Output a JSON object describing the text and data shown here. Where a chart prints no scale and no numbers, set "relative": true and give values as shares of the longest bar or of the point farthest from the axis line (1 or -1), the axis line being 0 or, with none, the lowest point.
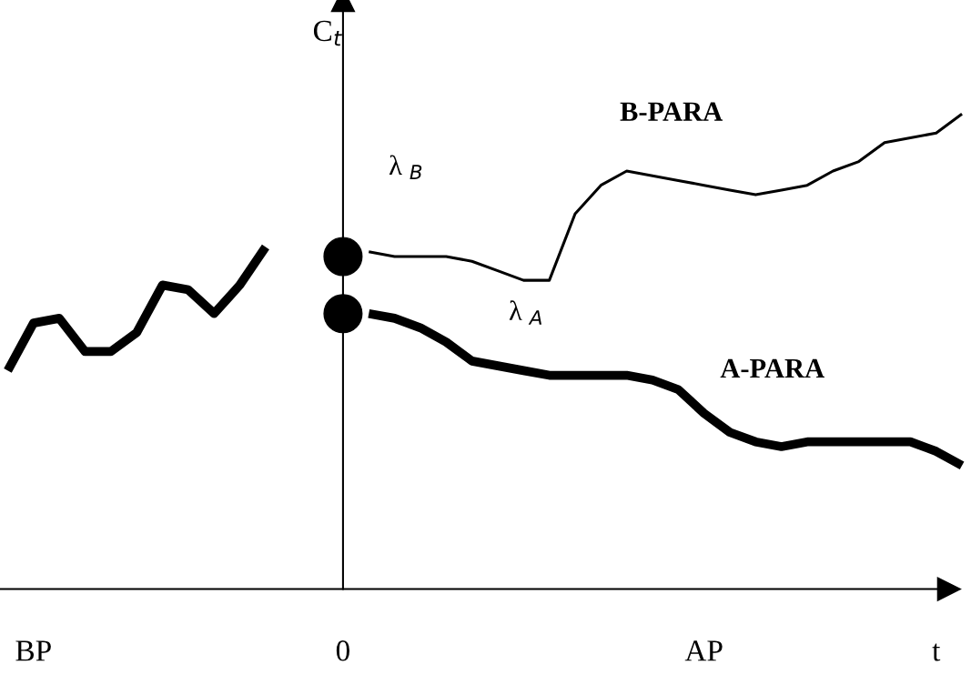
{
  "chart_data": {
    "type": "line",
    "relative": true,
    "ylabel": "C$_{t}$",
    "categories": [
      null,
      "BP",
      null,
      null,
      null,
      null,
      null,
      null,
      null,
      null,
      null,
      null,
      null,
      "0",
      null,
      null,
      null,
      null,
      null,
      null,
      null,
      null,
      null,
      null,
      null,
      null,
      null,
      "AP",
      null,
      null,
      null,
      null,
      null,
      null,
      null,
      null,
      "t",
      null
    ],
    "legend": false,
    "series": [
      {
        "color": "#000000",
        "values": [
          0.46,
          0.56,
          0.57,
          0.5,
          0.5,
          0.54,
          0.64,
          0.63,
          0.58,
          0.64,
          0.72,
          null,
          null,
          null,
          null,
          null,
          null,
          null,
          null,
          null,
          null,
          null,
          null,
          null,
          null,
          null,
          null,
          null,
          null,
          null,
          null,
          null,
          null,
          null,
          null,
          null,
          null,
          null
        ]
      },
      {
        "name": "B-PARA",
        "color": "#000000",
        "values": [
          null,
          null,
          null,
          null,
          null,
          null,
          null,
          null,
          null,
          null,
          null,
          null,
          null,
          null,
          0.71,
          0.7,
          0.7,
          0.7,
          0.69,
          0.67,
          0.65,
          0.65,
          0.79,
          0.85,
          0.88,
          0.87,
          0.86,
          0.85,
          0.84,
          0.83,
          0.84,
          0.85,
          0.88,
          0.9,
          0.94,
          0.95,
          0.96,
          1.0
        ]
      },
      {
        "name": "A-PARA",
        "color": "#000000",
        "values": [
          null,
          null,
          null,
          null,
          null,
          null,
          null,
          null,
          null,
          null,
          null,
          null,
          null,
          null,
          0.58,
          0.57,
          0.55,
          0.52,
          0.48,
          0.47,
          0.46,
          0.45,
          0.45,
          0.45,
          0.45,
          0.44,
          0.42,
          0.37,
          0.33,
          0.31,
          0.3,
          0.31,
          0.31,
          0.31,
          0.31,
          0.31,
          0.29,
          0.26
        ]
      },
      {
        "type": "scatter",
        "color": "#000000",
        "marker": "circle",
        "values": [
          null,
          null,
          null,
          null,
          null,
          null,
          null,
          null,
          null,
          null,
          null,
          null,
          null,
          0.7,
          null,
          null,
          null,
          null,
          null,
          null,
          null,
          null,
          null,
          null,
          null,
          null,
          null,
          null,
          null,
          null,
          null,
          null,
          null,
          null,
          null,
          null,
          null,
          null
        ]
      },
      {
        "type": "scatter",
        "color": "#000000",
        "marker": "circle",
        "values": [
          null,
          null,
          null,
          null,
          null,
          null,
          null,
          null,
          null,
          null,
          null,
          null,
          null,
          0.58,
          null,
          null,
          null,
          null,
          null,
          null,
          null,
          null,
          null,
          null,
          null,
          null,
          null,
          null,
          null,
          null,
          null,
          null,
          null,
          null,
          null,
          null,
          null,
          null
        ]
      }
    ],
    "annotations": [
      "λ $_{B}$",
      "λ $_{A}$"
    ]
  }
}
